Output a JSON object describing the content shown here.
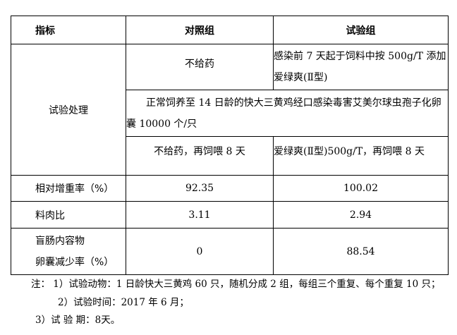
{
  "table": {
    "headers": [
      "指标",
      "对照组",
      "试验组"
    ],
    "treatment": {
      "label": "试验处理",
      "control_pre": "不给药",
      "test_pre": "感染前 7 天起于饲料中按 500g/T 添加爱绿爽(Ⅱ型)",
      "common": "正常饲养至 14 日龄的快大三黄鸡经口感染毒害艾美尔球虫孢子化卵囊 10000 个/只",
      "control_post": "不给药，再饲喂 8 天",
      "test_post": "爱绿爽(Ⅱ型)500g/T，再饲喂 8 天"
    },
    "rows": [
      {
        "label": "相对增重率（%）",
        "control": "92.35",
        "test": "100.02"
      },
      {
        "label": "料肉比",
        "control": "3.11",
        "test": "2.94"
      },
      {
        "label_line1": "盲肠内容物",
        "label_line2": "卵囊减少率（%）",
        "control": "0",
        "test": "88.54"
      }
    ]
  },
  "notes": [
    "注：  1）试验动物：1 日龄快大三黄鸡 60 只，随机分成 2 组，每组三个重复、每个重复 10 只；",
    "2）试验时间：2017 年 6 月；",
    "3）试 验 期：8天。"
  ]
}
